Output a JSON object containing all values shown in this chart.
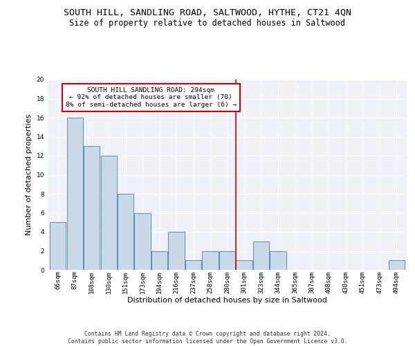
{
  "title": "SOUTH HILL, SANDLING ROAD, SALTWOOD, HYTHE, CT21 4QN",
  "subtitle": "Size of property relative to detached houses in Saltwood",
  "xlabel": "Distribution of detached houses by size in Saltwood",
  "ylabel": "Number of detached properties",
  "bar_labels": [
    "66sqm",
    "87sqm",
    "108sqm",
    "130sqm",
    "151sqm",
    "173sqm",
    "194sqm",
    "216sqm",
    "237sqm",
    "258sqm",
    "280sqm",
    "301sqm",
    "323sqm",
    "344sqm",
    "365sqm",
    "387sqm",
    "408sqm",
    "430sqm",
    "451sqm",
    "473sqm",
    "494sqm"
  ],
  "bar_values": [
    5,
    16,
    13,
    12,
    8,
    6,
    2,
    4,
    1,
    2,
    2,
    1,
    3,
    2,
    0,
    0,
    0,
    0,
    0,
    0,
    1
  ],
  "bar_color": "#c9d9e8",
  "bar_edgecolor": "#5b8db8",
  "background_color": "#eef2f8",
  "grid_color": "#ffffff",
  "annotation_text": "SOUTH HILL SANDLING ROAD: 294sqm\n← 92% of detached houses are smaller (70)\n8% of semi-detached houses are larger (6) →",
  "annotation_box_color": "#ffffff",
  "annotation_box_edgecolor": "#cc0000",
  "vline_color": "#cc0000",
  "footer_text": "Contains HM Land Registry data © Crown copyright and database right 2024.\nContains public sector information licensed under the Open Government Licence v3.0.",
  "ylim": [
    0,
    20
  ],
  "yticks": [
    0,
    2,
    4,
    6,
    8,
    10,
    12,
    14,
    16,
    18,
    20
  ],
  "property_line_index": 10.5,
  "title_fontsize": 9.5,
  "subtitle_fontsize": 8.5,
  "ylabel_fontsize": 8,
  "xlabel_fontsize": 8,
  "tick_fontsize": 6.5,
  "annotation_fontsize": 6.8,
  "footer_fontsize": 5.8
}
